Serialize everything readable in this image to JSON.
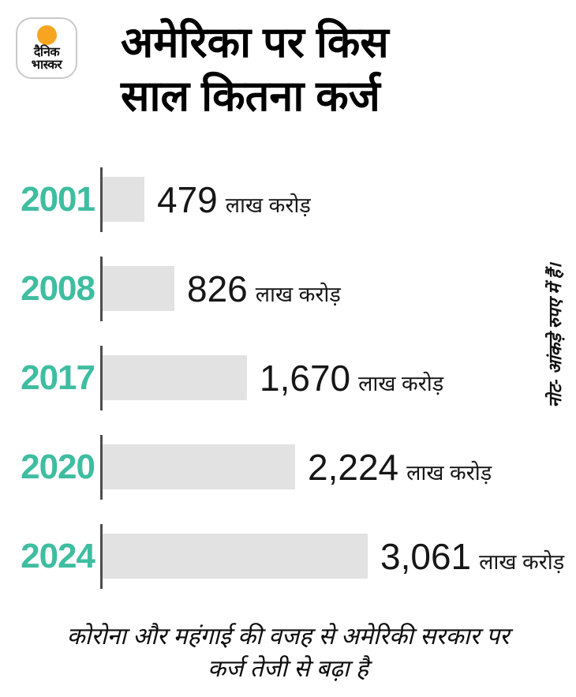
{
  "brand": {
    "line1": "दैनिक",
    "line2": "भास्कर",
    "dot_color": "#f7a521"
  },
  "title_lines": [
    "अमेरिका पर किस",
    "साल कितना कर्ज"
  ],
  "chart_data": {
    "type": "bar",
    "orientation": "horizontal",
    "title": "अमेरिका पर किस साल कितना कर्ज",
    "categories": [
      "2001",
      "2008",
      "2017",
      "2020",
      "2024"
    ],
    "values": [
      479,
      826,
      1670,
      2224,
      3061
    ],
    "value_labels": [
      "479",
      "826",
      "1,670",
      "2,224",
      "3,061"
    ],
    "unit_label": "लाख करोड़",
    "note": "नोट- आंकड़े रुपए में हैं।",
    "caption": "कोरोना और महंगाई की वजह से अमेरिकी सरकार पर कर्ज तेजी से बढ़ा है",
    "xlim": [
      0,
      3061
    ],
    "legend": "none",
    "grid": false,
    "bar_color": "#e2e2e2",
    "category_color": "#3fbda1",
    "axis_color": "#4d4d4d"
  },
  "caption_lines": [
    "कोरोना और महंगाई की वजह से अमेरिकी सरकार पर",
    "कर्ज तेजी से बढ़ा है"
  ]
}
